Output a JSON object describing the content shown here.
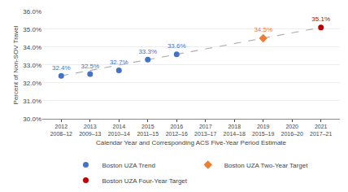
{
  "chart_data": {
    "type": "scatter",
    "xlabel": "Calendar Year and Corresponding ACS Five-Year Period Estimate",
    "ylabel": "Percent of Non-SOV Travel",
    "categories": [
      "2012\n2008–12",
      "2013\n2009–13",
      "2014\n2010–14",
      "2015\n2011–15",
      "2016\n2012–16",
      "2017\n2013–17",
      "2018\n2014–18",
      "2019\n2015–19",
      "2020\n2016–20",
      "2021\n2017–21"
    ],
    "series": [
      {
        "type": "line",
        "line_style": "dashed",
        "color": "#B0B0B0",
        "values": [
          32.4,
          null,
          null,
          null,
          null,
          null,
          null,
          null,
          null,
          35.1
        ]
      },
      {
        "name": "Boston UZA Trend",
        "type": "scatter",
        "marker": "circle",
        "color": "#4472C4",
        "values": [
          32.4,
          32.5,
          32.7,
          33.3,
          33.6,
          null,
          null,
          null,
          null,
          null
        ],
        "value_labels": [
          "32.4%",
          "32.5%",
          "32.7%",
          "33.3%",
          "33.6%",
          null,
          null,
          null,
          null,
          null
        ]
      },
      {
        "name": "Boston UZA Two-Year Target",
        "type": "scatter",
        "marker": "diamond",
        "color": "#ED7D31",
        "values": [
          null,
          null,
          null,
          null,
          null,
          null,
          null,
          34.5,
          null,
          null
        ],
        "value_labels": [
          null,
          null,
          null,
          null,
          null,
          null,
          null,
          "34.5%",
          null,
          null
        ]
      },
      {
        "name": "Boston UZA Four-Year Target",
        "type": "scatter",
        "marker": "circle",
        "color": "#C00000",
        "values": [
          null,
          null,
          null,
          null,
          null,
          null,
          null,
          null,
          null,
          35.1
        ],
        "value_labels": [
          null,
          null,
          null,
          null,
          null,
          null,
          null,
          null,
          null,
          "35.1%"
        ]
      }
    ],
    "ylim": [
      30.0,
      36.0
    ],
    "yticks": [
      {
        "value": 30.0,
        "label": "30.0%"
      },
      {
        "value": 31.0,
        "label": "31.0%"
      },
      {
        "value": 32.0,
        "label": "32.0%"
      },
      {
        "value": 33.0,
        "label": "33.0%"
      },
      {
        "value": 34.0,
        "label": "34.0%"
      },
      {
        "value": 35.0,
        "label": "35.0%"
      },
      {
        "value": 36.0,
        "label": "36.0%"
      }
    ],
    "grid": true,
    "legend": "bottom"
  }
}
